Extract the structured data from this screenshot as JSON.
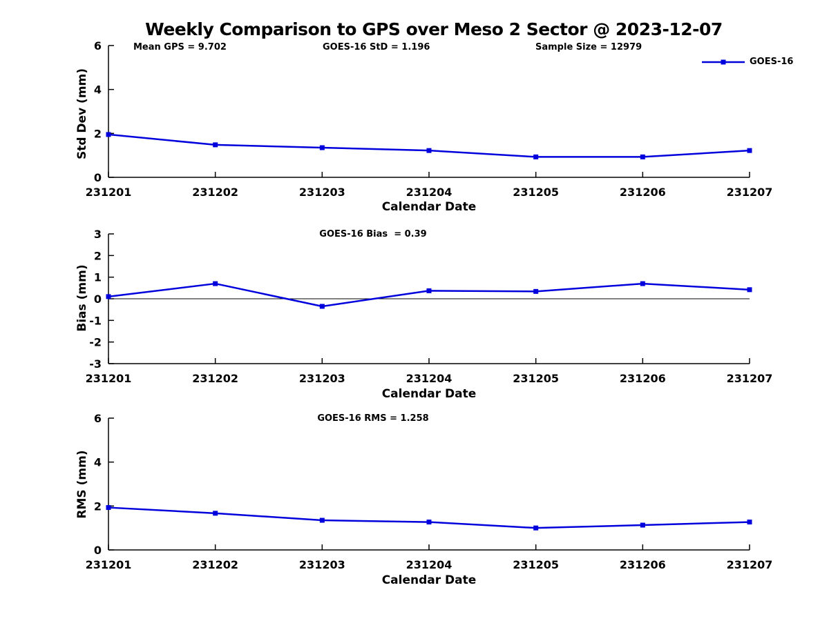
{
  "header": {
    "title": "Weekly Comparison to GPS over Meso 2 Sector @ 2023-12-07"
  },
  "colors": {
    "series": "#0000DD",
    "axis": "#000000",
    "background": "#FFFFFF"
  },
  "chart_data": [
    {
      "type": "line",
      "title": "",
      "xlabel": "Calendar Date",
      "ylabel": "Std Dev (mm)",
      "categories": [
        "231201",
        "231202",
        "231203",
        "231204",
        "231205",
        "231206",
        "231207"
      ],
      "series": [
        {
          "name": "GOES-16",
          "values": [
            1.95,
            1.48,
            1.35,
            1.22,
            0.93,
            0.93,
            1.22
          ]
        }
      ],
      "ylim": [
        0,
        6
      ],
      "yticks": [
        0,
        2,
        4,
        6
      ],
      "zero_line": false,
      "grid": false,
      "legend_position": "top-right",
      "annotations": [
        "Mean GPS = 9.702",
        "GOES-16 StD = 1.196",
        "Sample Size = 12979"
      ]
    },
    {
      "type": "line",
      "title": "GOES-16 Bias  = 0.39",
      "xlabel": "Calendar Date",
      "ylabel": "Bias (mm)",
      "categories": [
        "231201",
        "231202",
        "231203",
        "231204",
        "231205",
        "231206",
        "231207"
      ],
      "series": [
        {
          "name": "GOES-16",
          "values": [
            0.1,
            0.7,
            -0.35,
            0.37,
            0.34,
            0.7,
            0.42
          ]
        }
      ],
      "ylim": [
        -3,
        3
      ],
      "yticks": [
        -3,
        -2,
        -1,
        0,
        1,
        2,
        3
      ],
      "zero_line": true,
      "grid": false,
      "legend_position": "none"
    },
    {
      "type": "line",
      "title": "GOES-16 RMS = 1.258",
      "xlabel": "Calendar Date",
      "ylabel": "RMS (mm)",
      "categories": [
        "231201",
        "231202",
        "231203",
        "231204",
        "231205",
        "231206",
        "231207"
      ],
      "series": [
        {
          "name": "GOES-16",
          "values": [
            1.93,
            1.67,
            1.35,
            1.27,
            1.0,
            1.13,
            1.27
          ]
        }
      ],
      "ylim": [
        0,
        6
      ],
      "yticks": [
        0,
        2,
        4,
        6
      ],
      "zero_line": false,
      "grid": false,
      "legend_position": "none"
    }
  ]
}
